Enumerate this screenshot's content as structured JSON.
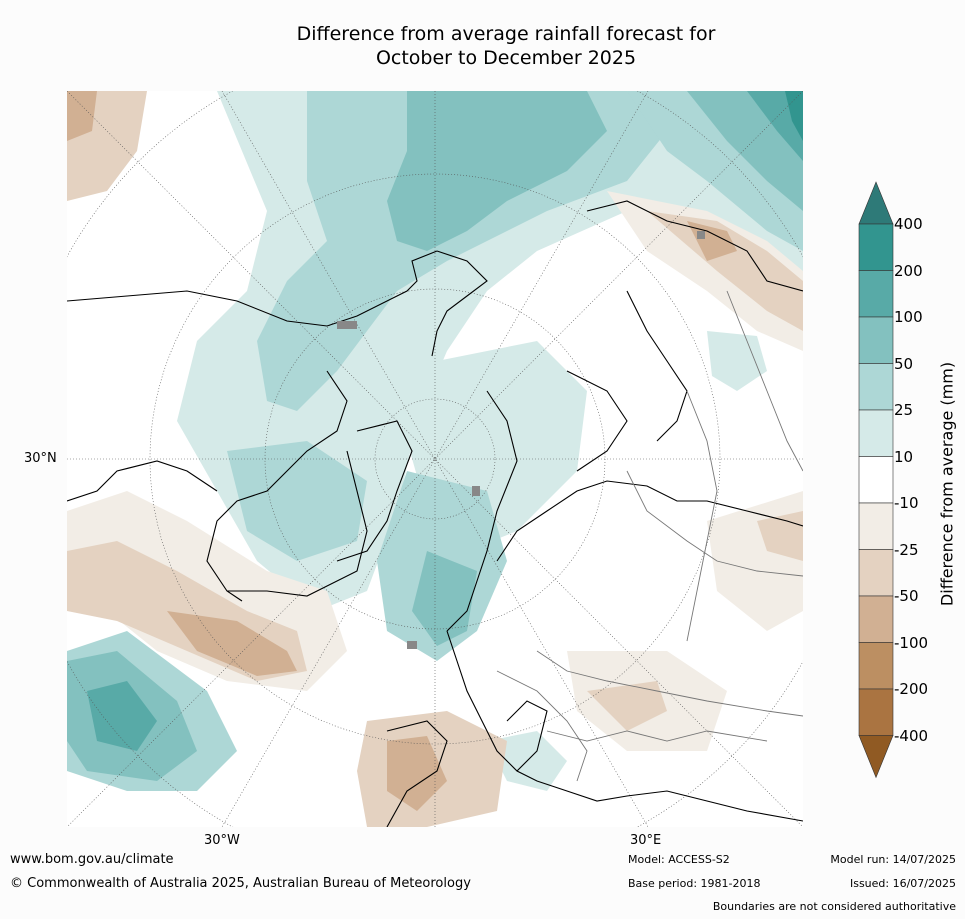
{
  "title": {
    "line1": "Difference from average rainfall forecast for",
    "line2": "October to December 2025"
  },
  "map": {
    "projection": "north polar stereographic",
    "grid_labels": {
      "lat_30n": "30°N",
      "lon_30w": "30°W",
      "lon_30e": "30°E"
    }
  },
  "colorbar": {
    "title": "Difference from average (mm)",
    "ticks": [
      "400",
      "200",
      "100",
      "50",
      "25",
      "10",
      "-10",
      "-25",
      "-50",
      "-100",
      "-200",
      "-400"
    ],
    "colors": [
      "#2e7a78",
      "#32958f",
      "#58aaa7",
      "#83c1bf",
      "#add7d6",
      "#d5eae8",
      "#ffffff",
      "#f2ede6",
      "#e4d2c1",
      "#d1b093",
      "#bc8f62",
      "#aa7441",
      "#905a23"
    ]
  },
  "footer": {
    "website": "www.bom.gov.au/climate",
    "copyright": "© Commonwealth of Australia 2025, Australian Bureau of Meteorology",
    "model": "Model: ACCESS-S2",
    "model_run": "Model run: 14/07/2025",
    "base_period": "Base period: 1981-2018",
    "issued": "Issued: 16/07/2025",
    "disclaimer": "Boundaries are not considered authoritative"
  }
}
